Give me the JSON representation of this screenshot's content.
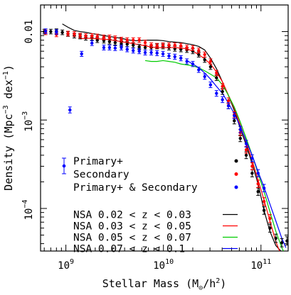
{
  "chart_data": {
    "type": "scatter",
    "xlabel": {
      "pre": "Stellar Mass (M",
      "sub": "⊙",
      "post": "/h",
      "sup": "2",
      "close": ")"
    },
    "ylabel": {
      "pre": "Density (Mpc",
      "sup1": "−3",
      "mid": " dex",
      "sup2": "−1",
      "close": ")"
    },
    "x_scale": "log",
    "y_scale": "log",
    "xlim": [
      550000000,
      190000000000
    ],
    "ylim": [
      3.3e-05,
      0.02
    ],
    "x_ticks": [
      {
        "base": "10",
        "exp": "9",
        "value": 1000000000
      },
      {
        "base": "10",
        "exp": "10",
        "value": 10000000000
      },
      {
        "base": "10",
        "exp": "11",
        "value": 100000000000
      }
    ],
    "y_ticks": [
      {
        "label": "0.01",
        "value": 0.01
      },
      {
        "base": "10",
        "exp": "−3",
        "value": 0.001
      },
      {
        "base": "10",
        "exp": "−4",
        "value": 0.0001
      }
    ],
    "grid": false,
    "legend_position": "bottom-left",
    "point_series": [
      {
        "name": "Primary+",
        "color": "#000000",
        "points": [
          [
            600000000.0,
            0.01
          ],
          [
            700000000.0,
            0.01
          ],
          [
            800000000.0,
            0.0101
          ],
          [
            920000000.0,
            0.0098
          ],
          [
            1050000000.0,
            0.0094
          ],
          [
            1220000000.0,
            0.009
          ],
          [
            1400000000.0,
            0.0088
          ],
          [
            1600000000.0,
            0.0085
          ],
          [
            1850000000.0,
            0.0085
          ],
          [
            2100000000.0,
            0.008
          ],
          [
            2450000000.0,
            0.0079
          ],
          [
            2800000000.0,
            0.0077
          ],
          [
            3200000000.0,
            0.0075
          ],
          [
            3700000000.0,
            0.0073
          ],
          [
            4250000000.0,
            0.0072
          ],
          [
            4900000000.0,
            0.007
          ],
          [
            5650000000.0,
            0.0067
          ],
          [
            6500000000.0,
            0.0066
          ],
          [
            7500000000.0,
            0.0066
          ],
          [
            8600000000.0,
            0.0068
          ],
          [
            9900000000.0,
            0.0068
          ],
          [
            11400000000.0,
            0.0066
          ],
          [
            13100000000.0,
            0.0064
          ],
          [
            15100000000.0,
            0.0063
          ],
          [
            17400000000.0,
            0.0062
          ],
          [
            20000000000.0,
            0.006
          ],
          [
            23000000000.0,
            0.0055
          ],
          [
            26500000000.0,
            0.0048
          ],
          [
            30400000000.0,
            0.004
          ],
          [
            35000000000.0,
            0.003
          ],
          [
            40300000000.0,
            0.0021
          ],
          [
            46400000000.0,
            0.00145
          ],
          [
            53300000000.0,
            0.00098
          ],
          [
            61400000000.0,
            0.00062
          ],
          [
            70600000000.0,
            0.0004
          ],
          [
            81200000000.0,
            0.00025
          ],
          [
            93400000000.0,
            0.000155
          ],
          [
            107500000000.0,
            9.5e-05
          ],
          [
            123600000000.0,
            6e-05
          ],
          [
            142200000000.0,
            4.6e-05
          ],
          [
            163600000000.0,
            4.1e-05
          ],
          [
            185000000000.0,
            4.3e-05
          ]
        ]
      },
      {
        "name": "Secondary",
        "color": "#ff0000",
        "points": [
          [
            620000000.0,
            0.0098
          ],
          [
            800000000.0,
            0.0093
          ],
          [
            1050000000.0,
            0.0095
          ],
          [
            1220000000.0,
            0.0094
          ],
          [
            1400000000.0,
            0.009
          ],
          [
            1600000000.0,
            0.0089
          ],
          [
            1850000000.0,
            0.0089
          ],
          [
            2100000000.0,
            0.0088
          ],
          [
            2450000000.0,
            0.0086
          ],
          [
            2800000000.0,
            0.0086
          ],
          [
            3200000000.0,
            0.0084
          ],
          [
            3700000000.0,
            0.0081
          ],
          [
            4250000000.0,
            0.008
          ],
          [
            4900000000.0,
            0.008
          ],
          [
            5650000000.0,
            0.008
          ],
          [
            6500000000.0,
            0.0075
          ],
          [
            7500000000.0,
            0.007
          ],
          [
            8600000000.0,
            0.0069
          ],
          [
            9900000000.0,
            0.007
          ],
          [
            11400000000.0,
            0.007
          ],
          [
            13100000000.0,
            0.007
          ],
          [
            15100000000.0,
            0.0069
          ],
          [
            17400000000.0,
            0.0066
          ],
          [
            20000000000.0,
            0.0065
          ],
          [
            23000000000.0,
            0.0061
          ],
          [
            26500000000.0,
            0.0055
          ],
          [
            30400000000.0,
            0.0046
          ],
          [
            35000000000.0,
            0.0034
          ],
          [
            40300000000.0,
            0.0024
          ],
          [
            46400000000.0,
            0.00165
          ],
          [
            53300000000.0,
            0.00115
          ],
          [
            61400000000.0,
            0.00072
          ],
          [
            70600000000.0,
            0.00046
          ],
          [
            81200000000.0,
            0.0003
          ],
          [
            93400000000.0,
            0.00019
          ],
          [
            107500000000.0,
            0.00012
          ],
          [
            123600000000.0,
            7.7e-05
          ]
        ]
      },
      {
        "name": "Primary+ & Secondary",
        "color": "#0000ff",
        "points": [
          [
            620000000.0,
            0.0101
          ],
          [
            800000000.0,
            0.0099
          ],
          [
            1100000000.0,
            0.0013
          ],
          [
            1450000000.0,
            0.0056
          ],
          [
            1850000000.0,
            0.0074
          ],
          [
            2450000000.0,
            0.0066
          ],
          [
            2800000000.0,
            0.0066
          ],
          [
            3200000000.0,
            0.0065
          ],
          [
            3700000000.0,
            0.0066
          ],
          [
            4250000000.0,
            0.0063
          ],
          [
            4900000000.0,
            0.0061
          ],
          [
            5650000000.0,
            0.006
          ],
          [
            6500000000.0,
            0.0058
          ],
          [
            7500000000.0,
            0.0058
          ],
          [
            8600000000.0,
            0.0057
          ],
          [
            9900000000.0,
            0.0056
          ],
          [
            11400000000.0,
            0.0053
          ],
          [
            13100000000.0,
            0.0052
          ],
          [
            15100000000.0,
            0.005
          ],
          [
            17400000000.0,
            0.0046
          ],
          [
            20000000000.0,
            0.0043
          ],
          [
            23000000000.0,
            0.0037
          ],
          [
            26500000000.0,
            0.0031
          ],
          [
            30400000000.0,
            0.0025
          ],
          [
            35000000000.0,
            0.002
          ],
          [
            40300000000.0,
            0.0017
          ],
          [
            46400000000.0,
            0.00145
          ],
          [
            53300000000.0,
            0.00112
          ],
          [
            61400000000.0,
            0.00078
          ],
          [
            70600000000.0,
            0.00054
          ],
          [
            81200000000.0,
            0.00037
          ],
          [
            93400000000.0,
            0.00025
          ],
          [
            107500000000.0,
            0.00017
          ]
        ]
      }
    ],
    "line_series": [
      {
        "name": "NSA 0.02 < z < 0.03",
        "color": "#000000",
        "points": [
          [
            920000000.0,
            0.0122
          ],
          [
            1050000000.0,
            0.0112
          ],
          [
            1220000000.0,
            0.0103
          ],
          [
            1400000000.0,
            0.01
          ],
          [
            1600000000.0,
            0.0098
          ],
          [
            1850000000.0,
            0.0095
          ],
          [
            2100000000.0,
            0.0093
          ],
          [
            2450000000.0,
            0.009
          ],
          [
            2800000000.0,
            0.0088
          ],
          [
            3200000000.0,
            0.0086
          ],
          [
            3700000000.0,
            0.0084
          ],
          [
            4250000000.0,
            0.0081
          ],
          [
            4900000000.0,
            0.0079
          ],
          [
            5650000000.0,
            0.0079
          ],
          [
            6500000000.0,
            0.008
          ],
          [
            7500000000.0,
            0.008
          ],
          [
            8600000000.0,
            0.008
          ],
          [
            9900000000.0,
            0.0079
          ],
          [
            11400000000.0,
            0.0077
          ],
          [
            13100000000.0,
            0.0076
          ],
          [
            15100000000.0,
            0.0075
          ],
          [
            17400000000.0,
            0.0073
          ],
          [
            20000000000.0,
            0.0071
          ],
          [
            23000000000.0,
            0.0068
          ],
          [
            26500000000.0,
            0.0062
          ],
          [
            30400000000.0,
            0.005
          ],
          [
            35000000000.0,
            0.0038
          ],
          [
            40300000000.0,
            0.0027
          ],
          [
            46400000000.0,
            0.0019
          ],
          [
            53300000000.0,
            0.00128
          ],
          [
            61400000000.0,
            0.0008
          ],
          [
            70600000000.0,
            0.00052
          ],
          [
            81200000000.0,
            0.00032
          ],
          [
            93400000000.0,
            0.00019
          ],
          [
            107500000000.0,
            9.5e-05
          ],
          [
            123600000000.0,
            5.5e-05
          ],
          [
            142200000000.0,
            3.8e-05
          ],
          [
            160000000000.0,
            3.3e-05
          ]
        ]
      },
      {
        "name": "NSA 0.03 < z < 0.05",
        "color": "#ff0000",
        "points": [
          [
            1400000000.0,
            0.0083
          ],
          [
            1600000000.0,
            0.0084
          ],
          [
            1850000000.0,
            0.0084
          ],
          [
            2100000000.0,
            0.0083
          ],
          [
            2450000000.0,
            0.0082
          ],
          [
            2800000000.0,
            0.0081
          ],
          [
            3200000000.0,
            0.0079
          ],
          [
            3700000000.0,
            0.0077
          ],
          [
            4250000000.0,
            0.0075
          ],
          [
            4900000000.0,
            0.0073
          ],
          [
            5650000000.0,
            0.0071
          ],
          [
            6500000000.0,
            0.0069
          ],
          [
            7500000000.0,
            0.0067
          ],
          [
            8600000000.0,
            0.0066
          ],
          [
            9900000000.0,
            0.0066
          ],
          [
            11400000000.0,
            0.0066
          ],
          [
            13100000000.0,
            0.0066
          ],
          [
            15100000000.0,
            0.0065
          ],
          [
            17400000000.0,
            0.0064
          ],
          [
            20000000000.0,
            0.006
          ],
          [
            23000000000.0,
            0.0055
          ],
          [
            26500000000.0,
            0.0049
          ],
          [
            30400000000.0,
            0.0043
          ],
          [
            35000000000.0,
            0.0035
          ],
          [
            40300000000.0,
            0.0027
          ],
          [
            46400000000.0,
            0.0019
          ],
          [
            53300000000.0,
            0.00135
          ],
          [
            61400000000.0,
            0.00088
          ],
          [
            70600000000.0,
            0.00056
          ],
          [
            81200000000.0,
            0.00035
          ],
          [
            93400000000.0,
            0.00021
          ],
          [
            107500000000.0,
            0.000125
          ],
          [
            123600000000.0,
            7.2e-05
          ],
          [
            142200000000.0,
            4.2e-05
          ],
          [
            155000000000.0,
            3.3e-05
          ]
        ]
      },
      {
        "name": "NSA 0.05 < z < 0.07",
        "color": "#00cc00",
        "points": [
          [
            6500000000.0,
            0.0047
          ],
          [
            7500000000.0,
            0.0046
          ],
          [
            8600000000.0,
            0.0046
          ],
          [
            9900000000.0,
            0.0047
          ],
          [
            11400000000.0,
            0.0046
          ],
          [
            13100000000.0,
            0.0045
          ],
          [
            15100000000.0,
            0.0043
          ],
          [
            17400000000.0,
            0.0042
          ],
          [
            20000000000.0,
            0.0041
          ],
          [
            23000000000.0,
            0.0039
          ],
          [
            26500000000.0,
            0.0036
          ],
          [
            30400000000.0,
            0.0033
          ],
          [
            35000000000.0,
            0.003
          ],
          [
            40300000000.0,
            0.0025
          ],
          [
            46400000000.0,
            0.0019
          ],
          [
            53300000000.0,
            0.0014
          ],
          [
            61400000000.0,
            0.00095
          ],
          [
            70600000000.0,
            0.00062
          ],
          [
            81200000000.0,
            0.0004
          ],
          [
            93400000000.0,
            0.00025
          ],
          [
            107500000000.0,
            0.000155
          ],
          [
            123600000000.0,
            9.2e-05
          ],
          [
            142200000000.0,
            5.5e-05
          ],
          [
            163600000000.0,
            3.6e-05
          ],
          [
            170000000000.0,
            3.3e-05
          ]
        ]
      },
      {
        "name": "NSA 0.07 < z < 0.1",
        "color": "#0000ff",
        "points": [
          [
            17400000000.0,
            0.0047
          ],
          [
            20000000000.0,
            0.0043
          ],
          [
            23000000000.0,
            0.0039
          ],
          [
            26500000000.0,
            0.0034
          ],
          [
            30400000000.0,
            0.0029
          ],
          [
            35000000000.0,
            0.0024
          ],
          [
            40300000000.0,
            0.002
          ],
          [
            46400000000.0,
            0.00155
          ],
          [
            53300000000.0,
            0.00118
          ],
          [
            61400000000.0,
            0.00085
          ],
          [
            70600000000.0,
            0.00058
          ],
          [
            81200000000.0,
            0.0004
          ],
          [
            93400000000.0,
            0.00026
          ],
          [
            107500000000.0,
            0.000175
          ],
          [
            123600000000.0,
            0.000112
          ],
          [
            142200000000.0,
            7.2e-05
          ],
          [
            163600000000.0,
            4.6e-05
          ],
          [
            180000000000.0,
            3.6e-05
          ]
        ]
      }
    ],
    "legend": {
      "errorbar_color": "#0000ff",
      "points": [
        {
          "label": "Primary+",
          "color": "#000000"
        },
        {
          "label": "Secondary",
          "color": "#ff0000"
        },
        {
          "label": "Primary+ & Secondary",
          "color": "#0000ff"
        }
      ],
      "lines": [
        {
          "label": "NSA 0.02 < z < 0.03",
          "color": "#000000"
        },
        {
          "label": "NSA 0.03 < z < 0.05",
          "color": "#ff0000"
        },
        {
          "label": "NSA 0.05 < z < 0.07",
          "color": "#00cc00"
        },
        {
          "label": "NSA 0.07 < z < 0.1",
          "color": "#0000ff"
        }
      ]
    }
  }
}
